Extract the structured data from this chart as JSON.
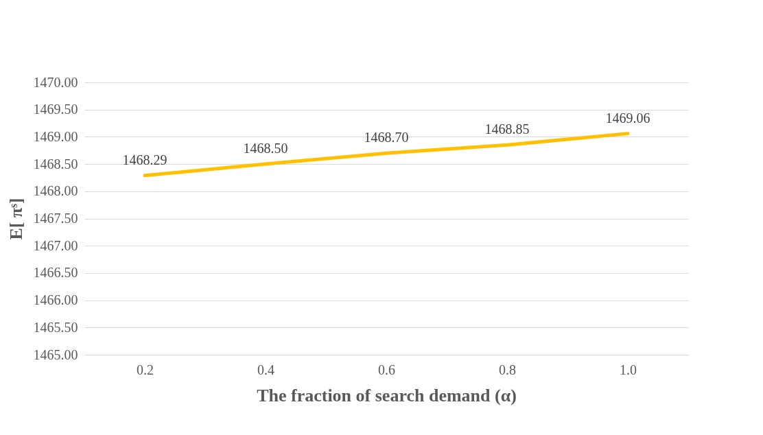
{
  "chart_data": {
    "type": "line",
    "xlabel": "The fraction of search demand (α)",
    "ylabel": "E[ πˢ]",
    "categories": [
      "0.2",
      "0.4",
      "0.6",
      "0.8",
      "1.0"
    ],
    "series": [
      {
        "color": "#ffc000",
        "values": [
          1468.29,
          1468.5,
          1468.7,
          1468.85,
          1469.06
        ],
        "value_labels": [
          "1468.29",
          "1468.50",
          "1468.70",
          "1468.85",
          "1469.06"
        ]
      }
    ],
    "ylim": [
      1465,
      1470
    ],
    "yticks": [
      {
        "value": 1465,
        "label": "1465.00"
      },
      {
        "value": 1465.5,
        "label": "1465.50"
      },
      {
        "value": 1466,
        "label": "1466.00"
      },
      {
        "value": 1466.5,
        "label": "1466.50"
      },
      {
        "value": 1467,
        "label": "1467.00"
      },
      {
        "value": 1467.5,
        "label": "1467.50"
      },
      {
        "value": 1468,
        "label": "1468.00"
      },
      {
        "value": 1468.5,
        "label": "1468.50"
      },
      {
        "value": 1469,
        "label": "1469.00"
      },
      {
        "value": 1469.5,
        "label": "1469.50"
      },
      {
        "value": 1470,
        "label": "1470.00"
      }
    ],
    "grid": "y",
    "marker": "none",
    "line_style": "solid",
    "legend": false
  }
}
